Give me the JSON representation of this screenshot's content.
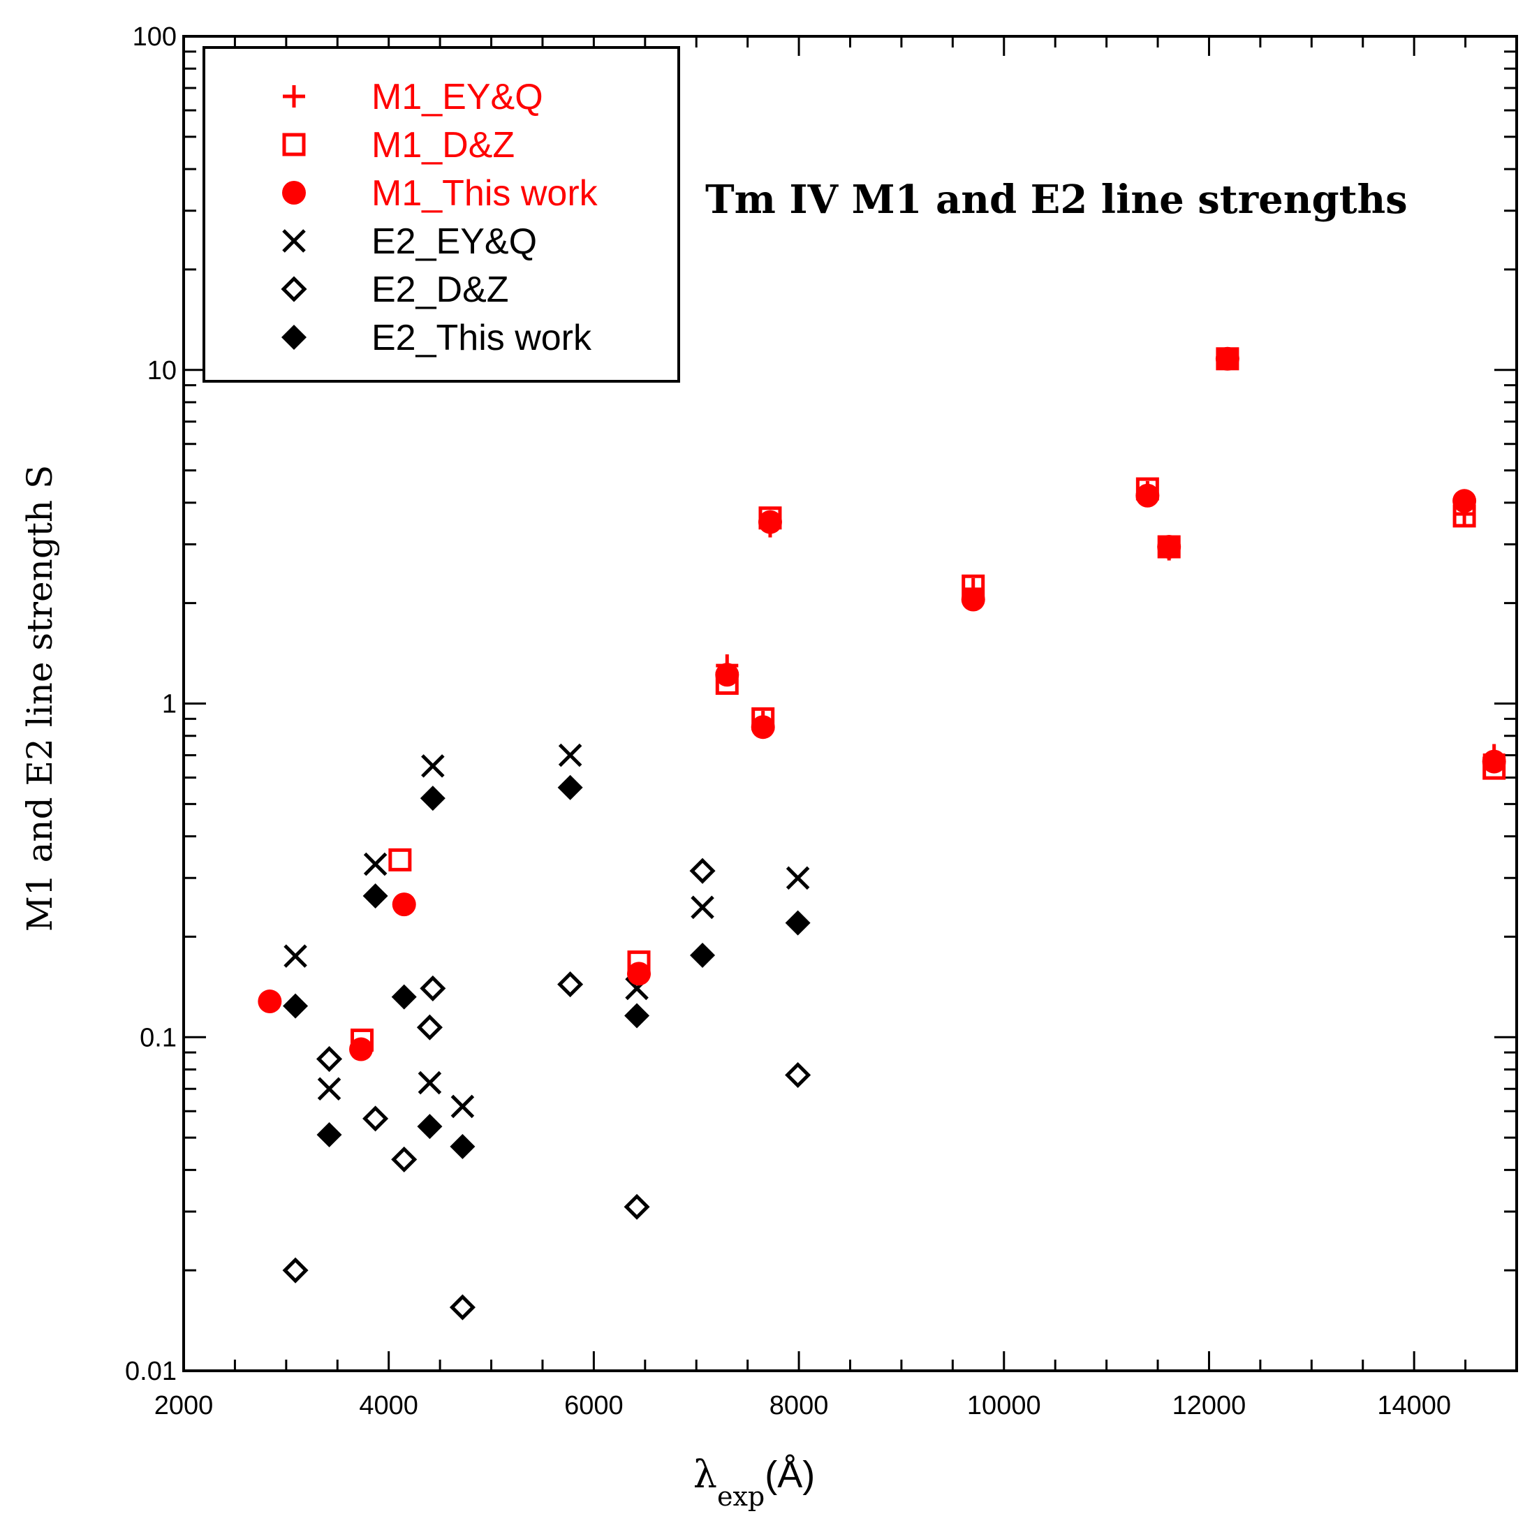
{
  "chart_data": {
    "type": "scatter",
    "title": "Tm IV M1 and E2 line strengths",
    "xlabel": {
      "symbol": "λ",
      "subscript": "exp",
      "unit": "(Å)"
    },
    "ylabel": "M1 and E2 line strength S",
    "xlim": [
      2000,
      15000
    ],
    "ylim": [
      0.01,
      100
    ],
    "yscale": "log",
    "x_ticks": [
      2000,
      4000,
      6000,
      8000,
      10000,
      12000,
      14000
    ],
    "x_tick_labels": [
      "2000",
      "4000",
      "6000",
      "8000",
      "10000",
      "12000",
      "14000"
    ],
    "y_ticks": [
      0.01,
      0.1,
      1,
      10,
      100
    ],
    "y_tick_labels": [
      "0.01",
      "0.1",
      "1",
      "10",
      "100"
    ],
    "legend_position": "top-left",
    "colors": {
      "m1": "#ff0000",
      "e2": "#000000"
    },
    "series": [
      {
        "name": "M1_EY&Q",
        "marker": "plus",
        "color": "#ff0000",
        "x": [
          7300,
          7720,
          7650,
          9700,
          11400,
          11610,
          12180,
          14490,
          14780
        ],
        "y": [
          1.3,
          3.4,
          0.88,
          2.2,
          4.3,
          2.9,
          10.8,
          3.7,
          0.7
        ]
      },
      {
        "name": "M1_D&Z",
        "marker": "square-open",
        "color": "#ff0000",
        "x": [
          3740,
          4110,
          6440,
          7300,
          7650,
          7720,
          9700,
          11400,
          11610,
          12180,
          14490,
          14780
        ],
        "y": [
          0.098,
          0.34,
          0.168,
          1.15,
          0.9,
          3.6,
          2.25,
          4.4,
          2.95,
          10.8,
          3.65,
          0.64
        ]
      },
      {
        "name": "M1_This work",
        "marker": "circle-filled",
        "color": "#ff0000",
        "x": [
          2840,
          3730,
          4150,
          6440,
          7300,
          7650,
          7720,
          9700,
          11400,
          11610,
          12180,
          14490,
          14780
        ],
        "y": [
          0.128,
          0.092,
          0.25,
          0.155,
          1.22,
          0.85,
          3.5,
          2.05,
          4.2,
          2.95,
          10.8,
          4.05,
          0.67
        ]
      },
      {
        "name": "E2_EY&Q",
        "marker": "cross",
        "color": "#000000",
        "x": [
          3090,
          3420,
          3870,
          4400,
          4430,
          4720,
          5770,
          6420,
          7060,
          7990
        ],
        "y": [
          0.175,
          0.07,
          0.33,
          0.073,
          0.65,
          0.062,
          0.7,
          0.14,
          0.245,
          0.3
        ]
      },
      {
        "name": "E2_D&Z",
        "marker": "diamond-open",
        "color": "#000000",
        "x": [
          3090,
          3420,
          3870,
          4150,
          4400,
          4430,
          4720,
          5770,
          6420,
          7060,
          7990
        ],
        "y": [
          0.02,
          0.086,
          0.057,
          0.043,
          0.107,
          0.14,
          0.0155,
          0.144,
          0.031,
          0.315,
          0.077
        ]
      },
      {
        "name": "E2_This work",
        "marker": "diamond-filled",
        "color": "#000000",
        "x": [
          3090,
          3420,
          3870,
          4150,
          4400,
          4430,
          4720,
          5770,
          6420,
          7060,
          7990
        ],
        "y": [
          0.124,
          0.051,
          0.265,
          0.132,
          0.054,
          0.52,
          0.047,
          0.56,
          0.116,
          0.176,
          0.22
        ]
      }
    ]
  }
}
